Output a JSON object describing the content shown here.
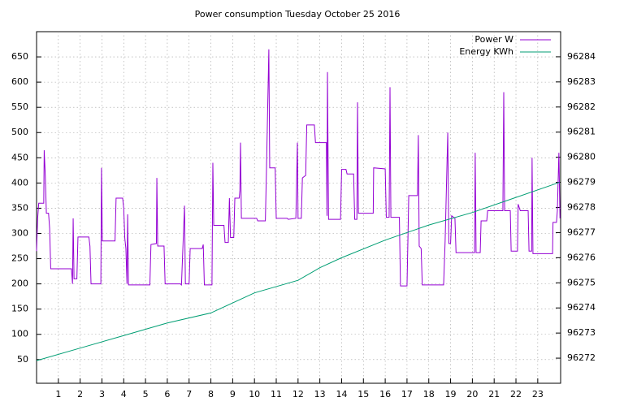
{
  "chart_data": {
    "type": "line",
    "title": "Power consumption Tuesday October 25 2016",
    "xlim": [
      0,
      24.05
    ],
    "xticks": [
      1,
      2,
      3,
      4,
      5,
      6,
      7,
      8,
      9,
      10,
      11,
      12,
      13,
      14,
      15,
      16,
      17,
      18,
      19,
      20,
      21,
      22,
      23
    ],
    "ylim": [
      3,
      700
    ],
    "yticks": [
      50,
      100,
      150,
      200,
      250,
      300,
      350,
      400,
      450,
      500,
      550,
      600,
      650
    ],
    "y2lim": [
      96271,
      96285
    ],
    "y2ticks": [
      96272,
      96273,
      96274,
      96275,
      96276,
      96277,
      96278,
      96279,
      96280,
      96281,
      96282,
      96283,
      96284
    ],
    "grid": true,
    "legend": "top-right",
    "series": [
      {
        "name": "Power W",
        "color": "#9400d3",
        "x": [
          0,
          0.05,
          0.1,
          0.33,
          0.35,
          0.4,
          0.45,
          0.55,
          0.6,
          0.65,
          1.6,
          1.65,
          1.68,
          1.72,
          1.85,
          1.9,
          2.4,
          2.45,
          2.5,
          2.95,
          2.98,
          3.02,
          3.6,
          3.65,
          3.95,
          4.0,
          4.05,
          4.1,
          4.15,
          4.18,
          4.22,
          5.2,
          5.25,
          5.5,
          5.52,
          5.56,
          5.85,
          5.9,
          6.6,
          6.65,
          6.79,
          6.83,
          7.0,
          7.05,
          7.6,
          7.65,
          7.7,
          8.05,
          8.09,
          8.13,
          8.6,
          8.65,
          8.8,
          8.85,
          8.9,
          9.05,
          9.1,
          9.3,
          9.33,
          9.36,
          9.4,
          10.1,
          10.15,
          10.5,
          10.55,
          10.66,
          10.7,
          10.95,
          11.0,
          11.5,
          11.55,
          11.9,
          11.97,
          12.0,
          12.15,
          12.2,
          12.35,
          12.4,
          12.75,
          12.8,
          13.3,
          13.33,
          13.35,
          13.4,
          13.95,
          14.0,
          14.2,
          14.25,
          14.55,
          14.6,
          14.7,
          14.73,
          14.77,
          15.45,
          15.47,
          16.0,
          16.05,
          16.18,
          16.22,
          16.26,
          16.65,
          16.7,
          17.0,
          17.05,
          17.08,
          17.48,
          17.52,
          17.56,
          17.65,
          17.7,
          18.68,
          18.75,
          18.87,
          18.92,
          19.0,
          19.05,
          19.2,
          19.25,
          20.1,
          20.13,
          20.17,
          20.36,
          20.4,
          20.66,
          20.7,
          21.4,
          21.44,
          21.48,
          21.74,
          21.78,
          22.07,
          22.1,
          22.2,
          22.56,
          22.6,
          22.72,
          22.74,
          22.78,
          23.68,
          23.7,
          23.86,
          23.9,
          23.97,
          24.02
        ],
        "values": [
          265,
          330,
          360,
          360,
          465,
          415,
          340,
          340,
          310,
          230,
          230,
          200,
          330,
          210,
          210,
          293,
          293,
          275,
          200,
          200,
          430,
          285,
          285,
          370,
          370,
          350,
          290,
          270,
          200,
          338,
          198,
          198,
          278,
          280,
          410,
          275,
          275,
          200,
          200,
          198,
          355,
          200,
          200,
          270,
          270,
          278,
          198,
          198,
          440,
          316,
          316,
          282,
          282,
          370,
          292,
          292,
          370,
          370,
          385,
          480,
          330,
          330,
          325,
          325,
          425,
          665,
          430,
          430,
          330,
          330,
          328,
          330,
          480,
          330,
          330,
          410,
          415,
          515,
          515,
          480,
          480,
          335,
          620,
          328,
          328,
          427,
          427,
          418,
          418,
          328,
          328,
          560,
          340,
          340,
          430,
          428,
          332,
          332,
          590,
          332,
          332,
          196,
          196,
          305,
          375,
          375,
          495,
          275,
          270,
          198,
          198,
          285,
          500,
          280,
          280,
          335,
          330,
          262,
          262,
          460,
          262,
          262,
          325,
          325,
          345,
          345,
          580,
          345,
          345,
          265,
          265,
          358,
          345,
          345,
          265,
          265,
          450,
          260,
          260,
          322,
          322,
          345,
          460,
          330
        ]
      },
      {
        "name": "Energy KWh",
        "color": "#009e73",
        "axis": "y2",
        "x": [
          0,
          2,
          4,
          6,
          8,
          10,
          12,
          13,
          14,
          16,
          18,
          20,
          22,
          24
        ],
        "values": [
          96271.9,
          96272.4,
          96272.9,
          96273.4,
          96273.8,
          96274.6,
          96275.1,
          96275.6,
          96276.0,
          96276.7,
          96277.3,
          96277.8,
          96278.4,
          96279.0
        ]
      }
    ]
  }
}
